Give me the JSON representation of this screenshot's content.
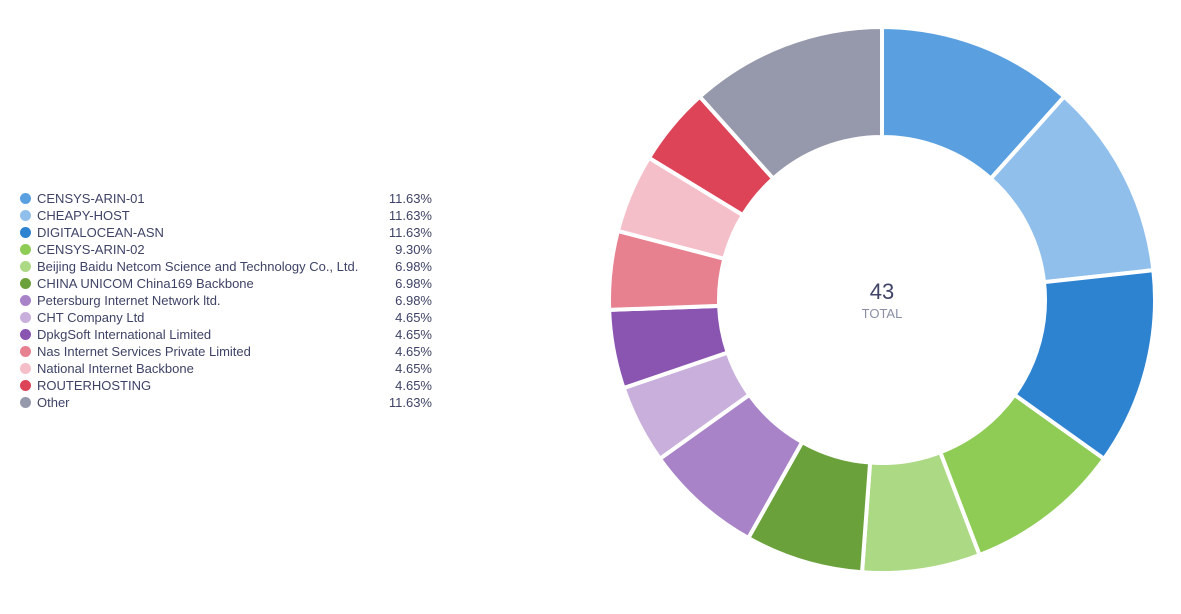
{
  "chart_data": {
    "type": "pie",
    "total": "43",
    "total_label": "TOTAL",
    "categories": [
      "CENSYS-ARIN-01",
      "CHEAPY-HOST",
      "DIGITALOCEAN-ASN",
      "CENSYS-ARIN-02",
      "Beijing Baidu Netcom Science and Technology Co., Ltd.",
      "CHINA UNICOM China169 Backbone",
      "Petersburg Internet Network ltd.",
      "CHT Company Ltd",
      "DpkgSoft International Limited",
      "Nas Internet Services Private Limited",
      "National Internet Backbone",
      "ROUTERHOSTING",
      "Other"
    ],
    "values": [
      11.63,
      11.63,
      11.63,
      9.3,
      6.98,
      6.98,
      6.98,
      4.65,
      4.65,
      4.65,
      4.65,
      4.65,
      11.63
    ],
    "value_labels": [
      "11.63%",
      "11.63%",
      "11.63%",
      "9.30%",
      "6.98%",
      "6.98%",
      "6.98%",
      "4.65%",
      "4.65%",
      "4.65%",
      "4.65%",
      "4.65%",
      "11.63%"
    ],
    "colors": [
      "#5aa0e0",
      "#90bfec",
      "#2d83d0",
      "#8fcc56",
      "#acd984",
      "#6ba13a",
      "#a883c8",
      "#c9b0dc",
      "#8a55b0",
      "#e8818f",
      "#f5bfca",
      "#dd4458",
      "#9699ac"
    ],
    "legend_placement": "left"
  }
}
